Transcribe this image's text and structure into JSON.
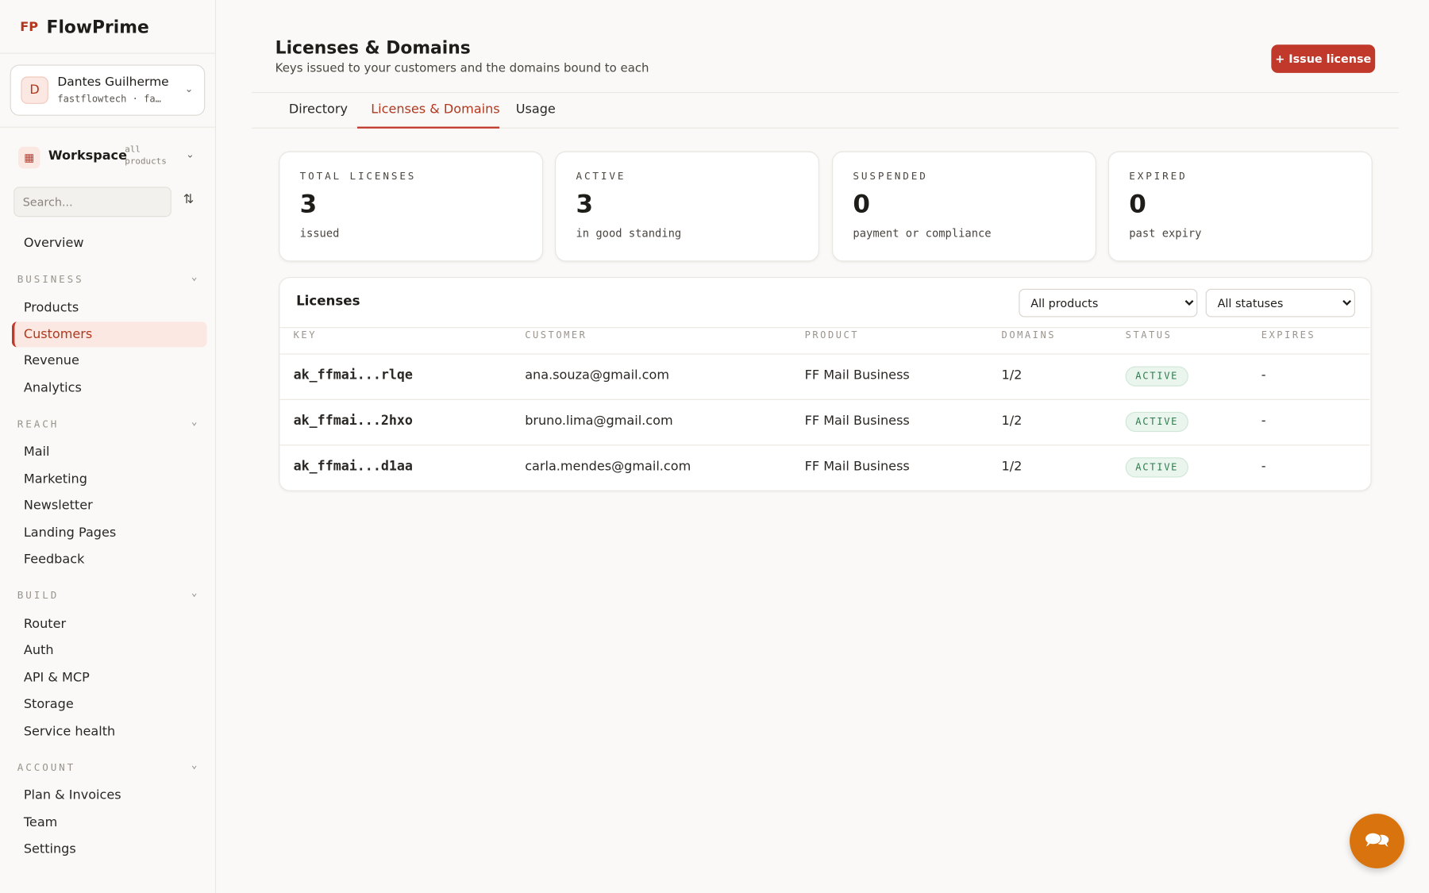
{
  "sidebar": {
    "brand": "FlowPrime",
    "account": {
      "initial": "D",
      "name": "Dantes Guilherme",
      "handle": "fastflowtech · fa…"
    },
    "workspace": {
      "label": "Workspace",
      "scope": "all products"
    },
    "search_placeholder": "Search...",
    "overview": "Overview",
    "sections": [
      {
        "title": "BUSINESS",
        "items": [
          "Products",
          "Customers",
          "Revenue",
          "Analytics"
        ]
      },
      {
        "title": "REACH",
        "items": [
          "Mail",
          "Marketing",
          "Newsletter",
          "Landing Pages",
          "Feedback"
        ]
      },
      {
        "title": "BUILD",
        "items": [
          "Router",
          "Auth",
          "API & MCP",
          "Storage",
          "Service health"
        ]
      },
      {
        "title": "ACCOUNT",
        "items": [
          "Plan & Invoices",
          "Team",
          "Settings"
        ]
      }
    ]
  },
  "page": {
    "title": "Licenses & Domains",
    "subtitle": "Keys issued to your customers and the domains bound to each",
    "action": "+ Issue license",
    "tabs": [
      "Directory",
      "Licenses & Domains",
      "Usage"
    ]
  },
  "stats": [
    {
      "label": "TOTAL LICENSES",
      "value": 3,
      "note": "issued"
    },
    {
      "label": "ACTIVE",
      "value": 3,
      "note": "in good standing"
    },
    {
      "label": "SUSPENDED",
      "value": 0,
      "note": "payment or compliance"
    },
    {
      "label": "EXPIRED",
      "value": 0,
      "note": "past expiry"
    }
  ],
  "table": {
    "title": "Licenses",
    "filters": [
      "All products",
      "All statuses"
    ],
    "columns": [
      "KEY",
      "CUSTOMER",
      "PRODUCT",
      "DOMAINS",
      "STATUS",
      "EXPIRES"
    ],
    "rows": [
      [
        "ak_ffmai...rlqe",
        "ana.souza@gmail.com",
        "FF Mail Business",
        "1/2",
        "ACTIVE",
        "-"
      ],
      [
        "ak_ffmai...2hxo",
        "bruno.lima@gmail.com",
        "FF Mail Business",
        "1/2",
        "ACTIVE",
        "-"
      ],
      [
        "ak_ffmai...d1aa",
        "carla.mendes@gmail.com",
        "FF Mail Business",
        "1/2",
        "ACTIVE",
        "-"
      ]
    ]
  }
}
